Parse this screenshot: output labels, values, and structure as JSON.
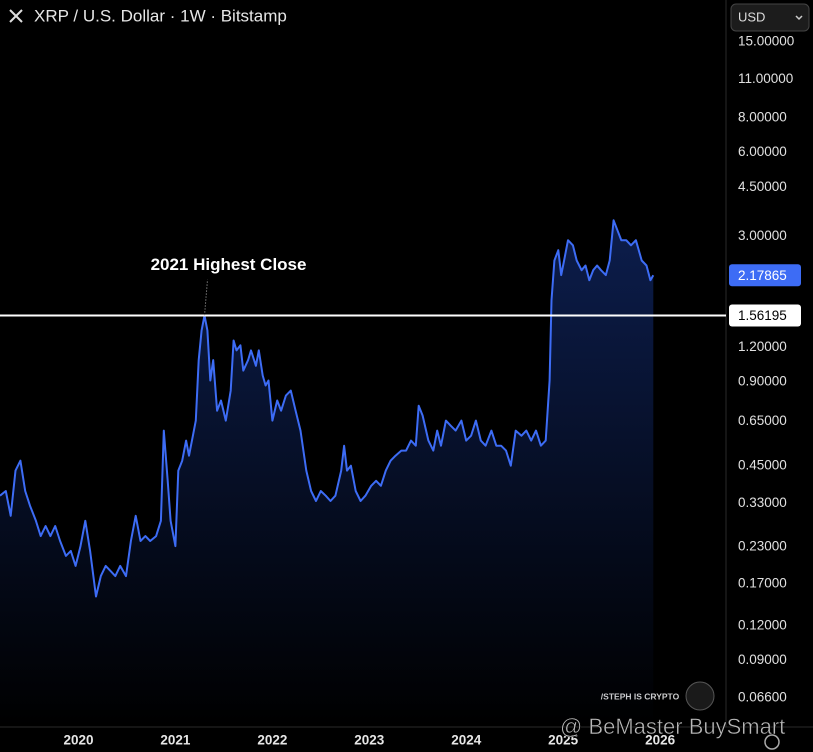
{
  "chart_data": {
    "type": "line",
    "title": "XRP / U.S. Dollar · 1W · Bitstamp",
    "log_scale": true,
    "grid": false,
    "color": "#3d6cf5",
    "x": [
      2019.19,
      2019.25,
      2019.3,
      2019.35,
      2019.4,
      2019.45,
      2019.5,
      2019.56,
      2019.61,
      2019.66,
      2019.71,
      2019.76,
      2019.81,
      2019.87,
      2019.92,
      2019.97,
      2020.02,
      2020.07,
      2020.12,
      2020.18,
      2020.23,
      2020.28,
      2020.33,
      2020.38,
      2020.43,
      2020.49,
      2020.54,
      2020.59,
      2020.64,
      2020.69,
      2020.74,
      2020.8,
      2020.85,
      2020.88,
      2020.92,
      2020.95,
      2021.0,
      2021.03,
      2021.07,
      2021.11,
      2021.14,
      2021.18,
      2021.21,
      2021.24,
      2021.27,
      2021.3,
      2021.33,
      2021.36,
      2021.39,
      2021.43,
      2021.47,
      2021.52,
      2021.57,
      2021.6,
      2021.63,
      2021.67,
      2021.7,
      2021.75,
      2021.78,
      2021.83,
      2021.86,
      2021.9,
      2021.93,
      2021.96,
      2022.0,
      2022.05,
      2022.09,
      2022.14,
      2022.19,
      2022.24,
      2022.29,
      2022.35,
      2022.4,
      2022.45,
      2022.5,
      2022.55,
      2022.6,
      2022.65,
      2022.71,
      2022.74,
      2022.77,
      2022.81,
      2022.86,
      2022.91,
      2022.96,
      2023.02,
      2023.07,
      2023.12,
      2023.17,
      2023.22,
      2023.27,
      2023.33,
      2023.38,
      2023.43,
      2023.48,
      2023.51,
      2023.55,
      2023.61,
      2023.66,
      2023.7,
      2023.74,
      2023.79,
      2023.84,
      2023.89,
      2023.95,
      2024.0,
      2024.05,
      2024.1,
      2024.15,
      2024.2,
      2024.26,
      2024.31,
      2024.36,
      2024.41,
      2024.46,
      2024.51,
      2024.57,
      2024.62,
      2024.67,
      2024.72,
      2024.77,
      2024.82,
      2024.86,
      2024.88,
      2024.91,
      2024.95,
      2024.98,
      2025.01,
      2025.05,
      2025.1,
      2025.14,
      2025.19,
      2025.23,
      2025.27,
      2025.31,
      2025.35,
      2025.39,
      2025.44,
      2025.48,
      2025.52,
      2025.56,
      2025.6,
      2025.65,
      2025.7,
      2025.75,
      2025.81,
      2025.86,
      2025.9,
      2025.93
    ],
    "values": [
      0.352,
      0.366,
      0.298,
      0.433,
      0.47,
      0.366,
      0.324,
      0.286,
      0.252,
      0.274,
      0.252,
      0.274,
      0.242,
      0.214,
      0.223,
      0.197,
      0.232,
      0.286,
      0.223,
      0.153,
      0.181,
      0.197,
      0.189,
      0.181,
      0.197,
      0.181,
      0.242,
      0.298,
      0.242,
      0.252,
      0.242,
      0.252,
      0.286,
      0.603,
      0.398,
      0.286,
      0.232,
      0.433,
      0.47,
      0.555,
      0.49,
      0.578,
      0.655,
      1.08,
      1.38,
      1.56195,
      1.38,
      0.912,
      1.08,
      0.711,
      0.773,
      0.655,
      0.839,
      1.27,
      1.17,
      1.22,
      0.99,
      1.08,
      1.17,
      1.03,
      1.17,
      0.951,
      0.875,
      0.912,
      0.655,
      0.773,
      0.711,
      0.805,
      0.839,
      0.711,
      0.603,
      0.433,
      0.366,
      0.337,
      0.366,
      0.352,
      0.337,
      0.352,
      0.433,
      0.532,
      0.433,
      0.451,
      0.366,
      0.337,
      0.352,
      0.382,
      0.398,
      0.382,
      0.433,
      0.47,
      0.49,
      0.511,
      0.511,
      0.555,
      0.532,
      0.741,
      0.683,
      0.555,
      0.511,
      0.603,
      0.532,
      0.655,
      0.628,
      0.603,
      0.655,
      0.555,
      0.578,
      0.655,
      0.555,
      0.532,
      0.603,
      0.532,
      0.532,
      0.511,
      0.451,
      0.603,
      0.578,
      0.603,
      0.555,
      0.603,
      0.532,
      0.555,
      0.912,
      1.77,
      2.46,
      2.68,
      2.18,
      2.46,
      2.91,
      2.79,
      2.46,
      2.27,
      2.36,
      2.09,
      2.27,
      2.36,
      2.27,
      2.18,
      2.46,
      3.43,
      3.16,
      2.91,
      2.91,
      2.79,
      2.91,
      2.46,
      2.36,
      2.09,
      2.17865
    ],
    "xlim": [
      2019.19,
      2026.68
    ],
    "xticks": [
      2020,
      2021,
      2022,
      2023,
      2024,
      2025,
      2026
    ],
    "ylim": [
      0.052,
      21.2
    ],
    "yticks": [
      {
        "value": 15,
        "label": "15.00000"
      },
      {
        "value": 11,
        "label": "11.00000"
      },
      {
        "value": 8,
        "label": "8.00000"
      },
      {
        "value": 6,
        "label": "6.00000"
      },
      {
        "value": 4.5,
        "label": "4.50000"
      },
      {
        "value": 3,
        "label": "3.00000"
      },
      {
        "value": 1.2,
        "label": "1.20000"
      },
      {
        "value": 0.9,
        "label": "0.90000"
      },
      {
        "value": 0.65,
        "label": "0.65000"
      },
      {
        "value": 0.45,
        "label": "0.45000"
      },
      {
        "value": 0.33,
        "label": "0.33000"
      },
      {
        "value": 0.23,
        "label": "0.23000"
      },
      {
        "value": 0.17,
        "label": "0.17000"
      },
      {
        "value": 0.12,
        "label": "0.12000"
      },
      {
        "value": 0.09,
        "label": "0.09000"
      },
      {
        "value": 0.066,
        "label": "0.06600"
      }
    ],
    "hline": {
      "value": 1.56195,
      "label": "2021 Highest Close",
      "color": "#ffffff"
    }
  },
  "ui": {
    "currency": "USD",
    "watermark": "/STEPH IS CRYPTO",
    "overlay": "@ BeMaster BuySmart"
  }
}
